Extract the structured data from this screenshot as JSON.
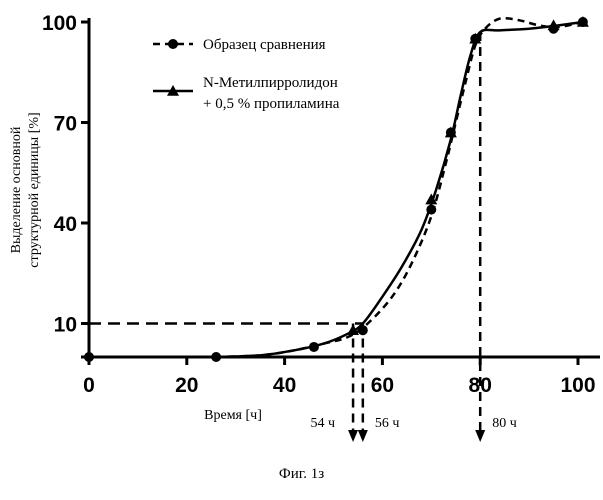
{
  "caption": "Фиг. 1з",
  "chart_data": {
    "type": "line",
    "xlabel": "Время [ч]",
    "ylabel": [
      "Выделение основной",
      "структурной единицы [%]"
    ],
    "xlim": [
      0,
      105
    ],
    "ylim": [
      0,
      100
    ],
    "x_ticks": [
      0,
      20,
      40,
      60,
      80,
      100
    ],
    "x_tick_labels": [
      "0",
      "20",
      "40",
      "60",
      "80",
      "100"
    ],
    "y_ticks": [
      0,
      10,
      40,
      70,
      100
    ],
    "y_tick_labels": [
      "",
      "10",
      "40",
      "70",
      "100"
    ],
    "legend_position": "top-left",
    "series": [
      {
        "name": "Образец сравнения",
        "line_style": "dashed",
        "marker": "circle",
        "color": "#000000",
        "points": [
          [
            0,
            0
          ],
          [
            26,
            0
          ],
          [
            46,
            3
          ],
          [
            56,
            8
          ],
          [
            70,
            44
          ],
          [
            74,
            67
          ],
          [
            79,
            95
          ],
          [
            95,
            98
          ],
          [
            101,
            100
          ]
        ],
        "curve": [
          [
            26,
            0
          ],
          [
            35,
            0.5
          ],
          [
            42,
            2
          ],
          [
            48,
            4
          ],
          [
            53,
            6
          ],
          [
            57,
            10
          ],
          [
            62,
            18
          ],
          [
            66,
            28
          ],
          [
            70,
            42
          ],
          [
            73,
            58
          ],
          [
            75,
            70
          ],
          [
            77,
            82
          ],
          [
            79,
            93
          ],
          [
            81,
            98
          ],
          [
            84,
            101
          ],
          [
            88,
            100.5
          ],
          [
            92,
            99
          ],
          [
            96,
            98.5
          ],
          [
            101,
            100
          ]
        ]
      },
      {
        "name": "N-Метилпирролидон",
        "name_line2": "+ 0,5 % пропиламина",
        "line_style": "solid",
        "marker": "triangle",
        "color": "#000000",
        "points": [
          [
            54,
            8
          ],
          [
            70,
            47
          ],
          [
            74,
            67
          ],
          [
            79,
            95
          ],
          [
            95,
            99
          ],
          [
            101,
            100
          ]
        ],
        "curve": [
          [
            26,
            0
          ],
          [
            35,
            0.5
          ],
          [
            42,
            2
          ],
          [
            48,
            4
          ],
          [
            53,
            7
          ],
          [
            56,
            10
          ],
          [
            60,
            18
          ],
          [
            64,
            27
          ],
          [
            68,
            38
          ],
          [
            71,
            50
          ],
          [
            74,
            65
          ],
          [
            76,
            78
          ],
          [
            78,
            90
          ],
          [
            80,
            97
          ],
          [
            84,
            97.5
          ],
          [
            90,
            98
          ],
          [
            96,
            99
          ],
          [
            101,
            100
          ]
        ]
      }
    ],
    "annotations": [
      {
        "label": "54 ч",
        "x": 54,
        "y": 10
      },
      {
        "label": "56 ч",
        "x": 56,
        "y": 10
      },
      {
        "label": "80 ч",
        "x": 80,
        "y": 97
      }
    ]
  }
}
